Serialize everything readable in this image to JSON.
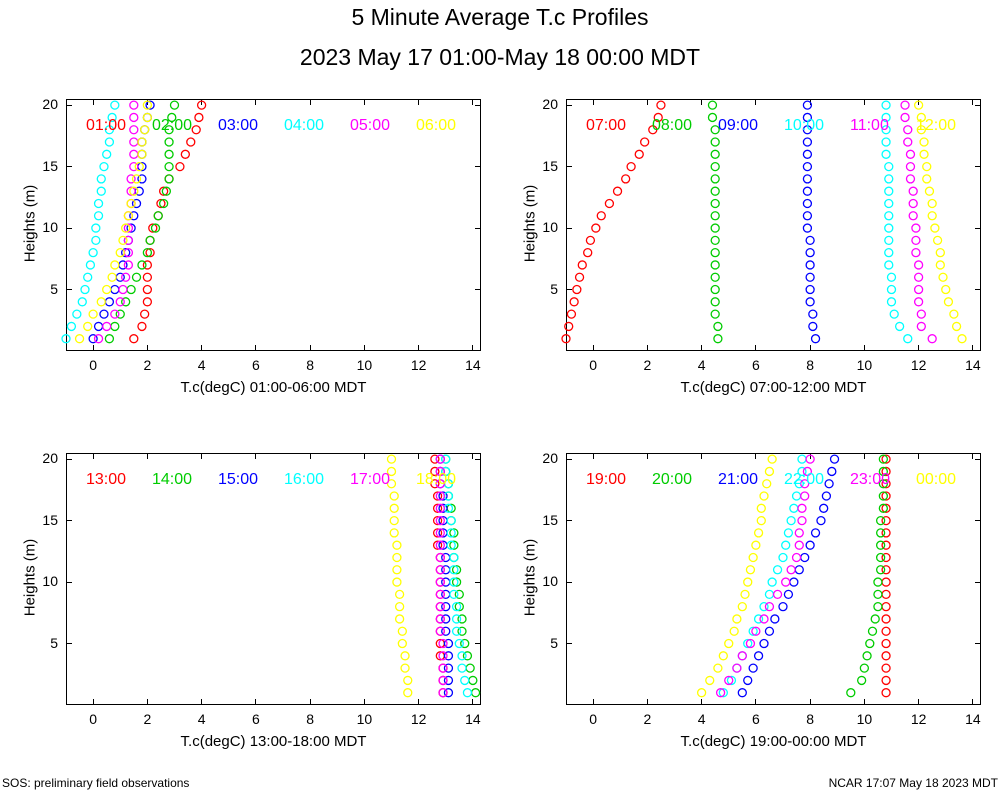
{
  "title": "5 Minute Average T.c Profiles",
  "subtitle": "2023 May 17 01:00-May 18 00:00 MDT",
  "footer_left": "SOS: preliminary field observations",
  "footer_right": "NCAR 17:07 May 18 2023 MDT",
  "chart_data": [
    {
      "type": "scatter",
      "xlabel": "T.c(degC) 01:00-06:00 MDT",
      "ylabel": "Heights (m)",
      "xlim": [
        -1,
        14.3
      ],
      "ylim": [
        0,
        20.5
      ],
      "x_ticks": [
        0,
        2,
        4,
        6,
        8,
        10,
        12,
        14
      ],
      "y_ticks": [
        5,
        10,
        15,
        20
      ],
      "heights": [
        1,
        2,
        3,
        4,
        5,
        6,
        7,
        8,
        9,
        10,
        11,
        12,
        13,
        14,
        15,
        16,
        17,
        18,
        19,
        20
      ],
      "series": [
        {
          "name": "01:00",
          "color": "#ff0000",
          "values": [
            1.5,
            1.8,
            1.9,
            2.0,
            2.0,
            2.0,
            2.0,
            2.1,
            2.1,
            2.2,
            2.4,
            2.5,
            2.6,
            2.8,
            3.2,
            3.4,
            3.6,
            3.8,
            3.9,
            4.0
          ]
        },
        {
          "name": "02:00",
          "color": "#00cc00",
          "values": [
            0.6,
            0.8,
            1.0,
            1.2,
            1.4,
            1.6,
            1.8,
            2.0,
            2.1,
            2.3,
            2.4,
            2.6,
            2.7,
            2.8,
            2.8,
            2.8,
            2.8,
            2.8,
            2.9,
            3.0
          ]
        },
        {
          "name": "03:00",
          "color": "#0000ff",
          "values": [
            0.0,
            0.2,
            0.4,
            0.6,
            0.8,
            1.0,
            1.1,
            1.2,
            1.3,
            1.4,
            1.5,
            1.6,
            1.7,
            1.8,
            1.8,
            1.8,
            1.8,
            1.9,
            2.0,
            2.1
          ]
        },
        {
          "name": "04:00",
          "color": "#00ffff",
          "values": [
            -1.0,
            -0.8,
            -0.6,
            -0.4,
            -0.3,
            -0.2,
            -0.1,
            0.0,
            0.1,
            0.1,
            0.2,
            0.2,
            0.3,
            0.3,
            0.4,
            0.5,
            0.6,
            0.6,
            0.7,
            0.8
          ]
        },
        {
          "name": "05:00",
          "color": "#ff00ff",
          "values": [
            0.2,
            0.5,
            0.8,
            1.0,
            1.1,
            1.2,
            1.3,
            1.3,
            1.3,
            1.3,
            1.3,
            1.4,
            1.4,
            1.4,
            1.5,
            1.5,
            1.5,
            1.5,
            1.5,
            1.5
          ]
        },
        {
          "name": "06:00",
          "color": "#ffff00",
          "values": [
            -0.5,
            -0.2,
            0.0,
            0.3,
            0.5,
            0.7,
            0.8,
            1.0,
            1.1,
            1.2,
            1.3,
            1.4,
            1.5,
            1.6,
            1.7,
            1.8,
            1.8,
            1.9,
            2.0,
            2.0
          ]
        }
      ]
    },
    {
      "type": "scatter",
      "xlabel": "T.c(degC) 07:00-12:00 MDT",
      "ylabel": "Heights (m)",
      "xlim": [
        -1,
        14.3
      ],
      "ylim": [
        0,
        20.5
      ],
      "x_ticks": [
        0,
        2,
        4,
        6,
        8,
        10,
        12,
        14
      ],
      "y_ticks": [
        5,
        10,
        15,
        20
      ],
      "heights": [
        1,
        2,
        3,
        4,
        5,
        6,
        7,
        8,
        9,
        10,
        11,
        12,
        13,
        14,
        15,
        16,
        17,
        18,
        19,
        20
      ],
      "series": [
        {
          "name": "07:00",
          "color": "#ff0000",
          "values": [
            -1.0,
            -0.9,
            -0.8,
            -0.7,
            -0.6,
            -0.5,
            -0.4,
            -0.2,
            -0.1,
            0.1,
            0.3,
            0.6,
            0.9,
            1.2,
            1.4,
            1.7,
            1.9,
            2.2,
            2.4,
            2.5
          ]
        },
        {
          "name": "08:00",
          "color": "#00cc00",
          "values": [
            4.6,
            4.6,
            4.5,
            4.5,
            4.5,
            4.5,
            4.5,
            4.5,
            4.5,
            4.5,
            4.5,
            4.5,
            4.5,
            4.5,
            4.5,
            4.5,
            4.5,
            4.5,
            4.4,
            4.4
          ]
        },
        {
          "name": "09:00",
          "color": "#0000ff",
          "values": [
            8.2,
            8.1,
            8.1,
            8.0,
            8.0,
            8.0,
            8.0,
            8.0,
            8.0,
            7.9,
            7.9,
            7.9,
            7.9,
            7.9,
            7.9,
            7.9,
            7.9,
            7.9,
            7.9,
            7.9
          ]
        },
        {
          "name": "10:00",
          "color": "#00ffff",
          "values": [
            11.6,
            11.3,
            11.1,
            11.0,
            11.0,
            11.0,
            10.9,
            10.9,
            10.9,
            10.9,
            10.9,
            10.9,
            10.9,
            10.9,
            10.9,
            10.8,
            10.8,
            10.8,
            10.8,
            10.8
          ]
        },
        {
          "name": "11:00",
          "color": "#ff00ff",
          "values": [
            12.5,
            12.1,
            12.1,
            12.0,
            12.0,
            12.0,
            12.0,
            11.9,
            11.9,
            11.9,
            11.8,
            11.8,
            11.8,
            11.7,
            11.7,
            11.7,
            11.6,
            11.6,
            11.5,
            11.5
          ]
        },
        {
          "name": "12:00",
          "color": "#ffff00",
          "values": [
            13.6,
            13.4,
            13.3,
            13.1,
            13.0,
            12.9,
            12.8,
            12.8,
            12.7,
            12.6,
            12.5,
            12.5,
            12.4,
            12.3,
            12.3,
            12.2,
            12.2,
            12.1,
            12.1,
            12.0
          ]
        }
      ]
    },
    {
      "type": "scatter",
      "xlabel": "T.c(degC) 13:00-18:00 MDT",
      "ylabel": "Heights (m)",
      "xlim": [
        -1,
        14.3
      ],
      "ylim": [
        0,
        20.5
      ],
      "x_ticks": [
        0,
        2,
        4,
        6,
        8,
        10,
        12,
        14
      ],
      "y_ticks": [
        5,
        10,
        15,
        20
      ],
      "heights": [
        1,
        2,
        3,
        4,
        5,
        6,
        7,
        8,
        9,
        10,
        11,
        12,
        13,
        14,
        15,
        16,
        17,
        18,
        19,
        20
      ],
      "series": [
        {
          "name": "13:00",
          "color": "#ff0000",
          "values": [
            12.9,
            12.9,
            12.9,
            12.8,
            12.8,
            12.8,
            12.8,
            12.8,
            12.8,
            12.8,
            12.8,
            12.8,
            12.7,
            12.7,
            12.7,
            12.7,
            12.7,
            12.6,
            12.6,
            12.6
          ]
        },
        {
          "name": "14:00",
          "color": "#00cc00",
          "values": [
            14.1,
            14.0,
            13.9,
            13.8,
            13.7,
            13.6,
            13.6,
            13.5,
            13.5,
            13.4,
            13.4,
            13.3,
            13.3,
            13.3,
            13.2,
            13.2,
            13.1,
            13.1,
            13.0,
            13.0
          ]
        },
        {
          "name": "15:00",
          "color": "#0000ff",
          "values": [
            13.1,
            13.1,
            13.1,
            13.1,
            13.1,
            13.0,
            13.0,
            13.0,
            13.0,
            13.0,
            13.0,
            13.0,
            12.9,
            12.9,
            12.9,
            12.9,
            12.9,
            12.8,
            12.8,
            12.8
          ]
        },
        {
          "name": "16:00",
          "color": "#00ffff",
          "values": [
            13.8,
            13.7,
            13.6,
            13.6,
            13.5,
            13.4,
            13.4,
            13.4,
            13.3,
            13.3,
            13.3,
            13.3,
            13.2,
            13.2,
            13.2,
            13.1,
            13.1,
            13.1,
            13.0,
            13.0
          ]
        },
        {
          "name": "17:00",
          "color": "#ff00ff",
          "values": [
            12.9,
            12.9,
            12.9,
            12.9,
            12.9,
            12.8,
            12.8,
            12.8,
            12.8,
            12.8,
            12.8,
            12.8,
            12.8,
            12.8,
            12.8,
            12.8,
            12.8,
            12.8,
            12.8,
            12.8
          ]
        },
        {
          "name": "18:00",
          "color": "#ffff00",
          "values": [
            11.6,
            11.6,
            11.5,
            11.5,
            11.4,
            11.4,
            11.3,
            11.3,
            11.3,
            11.2,
            11.2,
            11.2,
            11.2,
            11.1,
            11.1,
            11.1,
            11.1,
            11.0,
            11.0,
            11.0
          ]
        }
      ]
    },
    {
      "type": "scatter",
      "xlabel": "T.c(degC) 19:00-00:00 MDT",
      "ylabel": "Heights (m)",
      "xlim": [
        -1,
        14.3
      ],
      "ylim": [
        0,
        20.5
      ],
      "x_ticks": [
        0,
        2,
        4,
        6,
        8,
        10,
        12,
        14
      ],
      "y_ticks": [
        5,
        10,
        15,
        20
      ],
      "heights": [
        1,
        2,
        3,
        4,
        5,
        6,
        7,
        8,
        9,
        10,
        11,
        12,
        13,
        14,
        15,
        16,
        17,
        18,
        19,
        20
      ],
      "series": [
        {
          "name": "19:00",
          "color": "#ff0000",
          "values": [
            10.8,
            10.8,
            10.8,
            10.8,
            10.8,
            10.8,
            10.8,
            10.8,
            10.8,
            10.8,
            10.8,
            10.8,
            10.8,
            10.8,
            10.8,
            10.8,
            10.8,
            10.8,
            10.8,
            10.8
          ]
        },
        {
          "name": "20:00",
          "color": "#00cc00",
          "values": [
            9.5,
            9.9,
            10.0,
            10.1,
            10.2,
            10.3,
            10.4,
            10.5,
            10.5,
            10.5,
            10.6,
            10.6,
            10.6,
            10.6,
            10.6,
            10.7,
            10.7,
            10.7,
            10.7,
            10.7
          ]
        },
        {
          "name": "21:00",
          "color": "#0000ff",
          "values": [
            5.5,
            5.7,
            5.9,
            6.1,
            6.3,
            6.5,
            6.7,
            7.0,
            7.2,
            7.4,
            7.6,
            7.8,
            8.0,
            8.2,
            8.4,
            8.5,
            8.6,
            8.7,
            8.8,
            8.9
          ]
        },
        {
          "name": "22:00",
          "color": "#00ffff",
          "values": [
            4.8,
            5.1,
            5.3,
            5.5,
            5.7,
            5.9,
            6.1,
            6.3,
            6.5,
            6.6,
            6.8,
            7.0,
            7.1,
            7.2,
            7.3,
            7.4,
            7.5,
            7.6,
            7.7,
            7.7
          ]
        },
        {
          "name": "23:00",
          "color": "#ff00ff",
          "values": [
            4.7,
            5.0,
            5.3,
            5.5,
            5.8,
            6.0,
            6.3,
            6.5,
            6.8,
            7.1,
            7.3,
            7.5,
            7.6,
            7.6,
            7.7,
            7.7,
            7.8,
            7.8,
            7.9,
            8.0
          ]
        },
        {
          "name": "00:00",
          "color": "#ffff00",
          "values": [
            4.0,
            4.3,
            4.6,
            4.8,
            5.0,
            5.2,
            5.3,
            5.5,
            5.6,
            5.7,
            5.8,
            5.9,
            6.0,
            6.1,
            6.2,
            6.2,
            6.3,
            6.4,
            6.5,
            6.6
          ]
        }
      ]
    }
  ]
}
